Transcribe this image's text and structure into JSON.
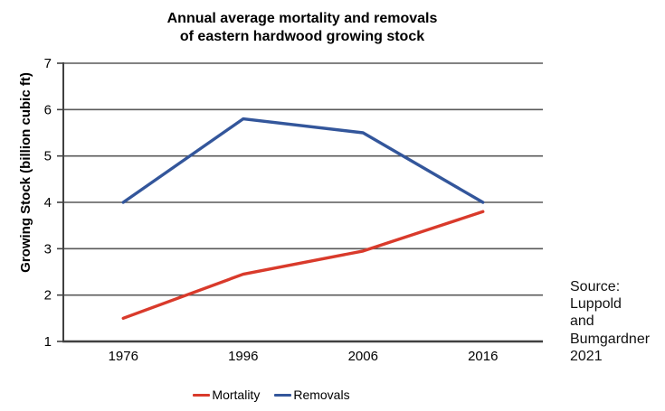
{
  "chart_data": {
    "type": "line",
    "title": "Annual average mortality and removals of eastern hardwood growing stock",
    "title_lines": [
      "Annual average mortality and removals",
      "of eastern hardwood growing stock"
    ],
    "categories": [
      "1976",
      "1996",
      "2006",
      "2016"
    ],
    "series": [
      {
        "name": "Mortality",
        "color": "#d93a2b",
        "values": [
          1.5,
          2.45,
          2.95,
          3.8
        ]
      },
      {
        "name": "Removals",
        "color": "#33569b",
        "values": [
          4.0,
          5.8,
          5.5,
          4.0
        ]
      }
    ],
    "xlabel": "",
    "ylabel": "Growing Stock (billion cubic ft)",
    "ylim": [
      1,
      7
    ],
    "yticks": [
      1,
      2,
      3,
      4,
      5,
      6,
      7
    ],
    "grid": "horizontal",
    "grid_color": "#595959",
    "axis_color": "#404040",
    "text_color": "#000000",
    "legend_position": "bottom"
  },
  "source_note": {
    "text": "Source: Luppold and Bumgardner 2021",
    "lines": [
      "Source:",
      "Luppold",
      "and",
      "Bumgardner",
      "2021"
    ]
  }
}
